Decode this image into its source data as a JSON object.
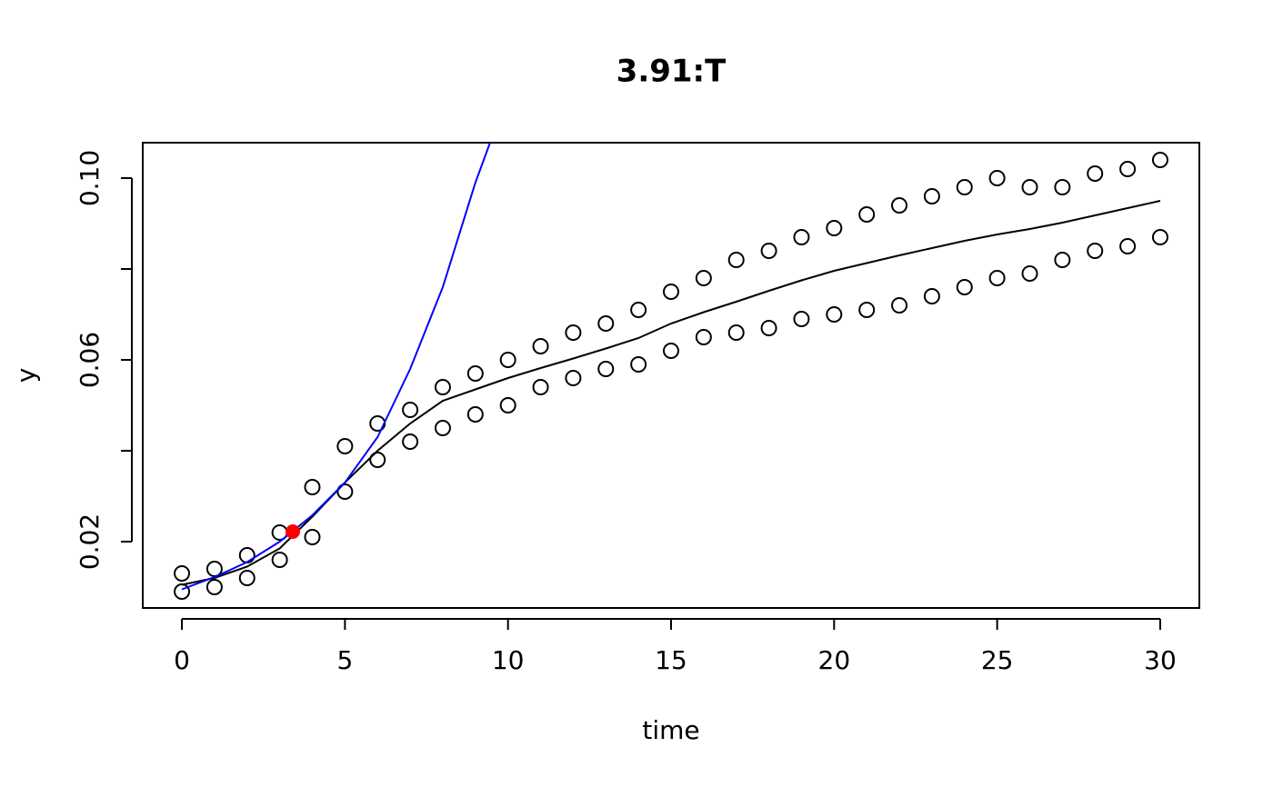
{
  "chart_data": {
    "type": "scatter",
    "title": "3.91:T",
    "xlabel": "time",
    "ylabel": "y",
    "xlim": [
      -1.2,
      31.2
    ],
    "ylim": [
      0.0054,
      0.1078
    ],
    "xticks": [
      0,
      5,
      10,
      15,
      20,
      25,
      30
    ],
    "yticks": [
      0.02,
      {
        "value": 0.04,
        "label": null
      },
      0.06,
      {
        "value": 0.08,
        "label": null
      },
      {
        "value": 0.1,
        "label": "0.10"
      }
    ],
    "series": [
      {
        "type": "scatter",
        "color": "#000000",
        "filled": false,
        "x": [
          0,
          0,
          1,
          1,
          2,
          2,
          3,
          3,
          4,
          4,
          5,
          5,
          6,
          6,
          7,
          7,
          8,
          8,
          9,
          9,
          10,
          10,
          11,
          11,
          12,
          12,
          13,
          13,
          14,
          14,
          15,
          15,
          16,
          16,
          17,
          17,
          18,
          18,
          19,
          19,
          20,
          20,
          21,
          21,
          22,
          22,
          23,
          23,
          24,
          24,
          25,
          25,
          26,
          26,
          27,
          27,
          28,
          28,
          29,
          29,
          30,
          30
        ],
        "values": [
          0.013,
          0.009,
          0.014,
          0.01,
          0.017,
          0.012,
          0.022,
          0.016,
          0.032,
          0.021,
          0.041,
          0.031,
          0.046,
          0.038,
          0.049,
          0.042,
          0.054,
          0.045,
          0.057,
          0.048,
          0.06,
          0.05,
          0.063,
          0.054,
          0.066,
          0.056,
          0.068,
          0.058,
          0.071,
          0.059,
          0.075,
          0.062,
          0.078,
          0.065,
          0.082,
          0.066,
          0.084,
          0.067,
          0.087,
          0.069,
          0.089,
          0.07,
          0.092,
          0.071,
          0.094,
          0.072,
          0.096,
          0.074,
          0.098,
          0.076,
          0.1,
          0.078,
          0.098,
          0.079,
          0.098,
          0.082,
          0.101,
          0.084,
          0.102,
          0.085,
          0.104,
          0.087
        ]
      },
      {
        "type": "line",
        "color": "#000000",
        "x": [
          0,
          1,
          2,
          3,
          4,
          5,
          6,
          7,
          8,
          9,
          10,
          11,
          12,
          13,
          14,
          15,
          16,
          17,
          18,
          19,
          20,
          21,
          22,
          23,
          24,
          25,
          26,
          27,
          28,
          29,
          30
        ],
        "values": [
          0.0105,
          0.012,
          0.0145,
          0.0185,
          0.0255,
          0.033,
          0.04,
          0.046,
          0.051,
          0.0535,
          0.056,
          0.0582,
          0.0603,
          0.0625,
          0.0648,
          0.068,
          0.0705,
          0.0728,
          0.0752,
          0.0775,
          0.0796,
          0.0813,
          0.083,
          0.0846,
          0.0862,
          0.0876,
          0.0888,
          0.0902,
          0.0918,
          0.0934,
          0.095
        ]
      },
      {
        "type": "line",
        "color": "#0000ff",
        "x": [
          0,
          1,
          2,
          3,
          4,
          5,
          6,
          7,
          8,
          9,
          9.45
        ],
        "values": [
          0.0095,
          0.0122,
          0.0155,
          0.02,
          0.0258,
          0.033,
          0.043,
          0.058,
          0.076,
          0.099,
          0.1078
        ]
      },
      {
        "type": "scatter",
        "color": "#ff0000",
        "filled": true,
        "x": [
          3.4
        ],
        "values": [
          0.0222
        ]
      }
    ]
  }
}
